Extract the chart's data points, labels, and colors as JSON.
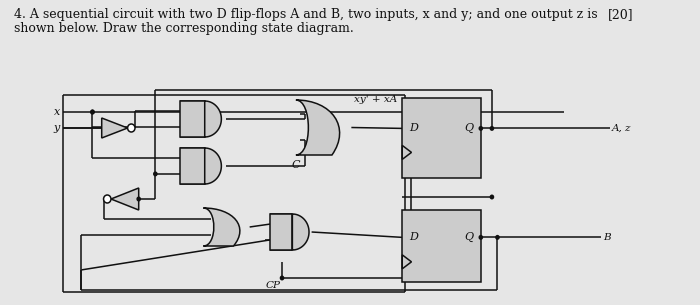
{
  "background_color": "#e6e6e6",
  "title_line1": "4. A sequential circuit with two D flip-flops A and B, two inputs, x and y; and one output z is",
  "title_line2": "shown below. Draw the corresponding state diagram.",
  "score_text": "[20]",
  "title_fontsize": 9.0,
  "line_color": "#111111",
  "gate_fill": "#cccccc",
  "label_xy_plus_xa": "xy' + xA",
  "label_c": "C",
  "label_cp": "CP",
  "label_az": "A, z",
  "label_b": "B",
  "label_x": "x",
  "label_y": "y",
  "label_D": "D",
  "label_Q": "Q",
  "lw": 1.1
}
